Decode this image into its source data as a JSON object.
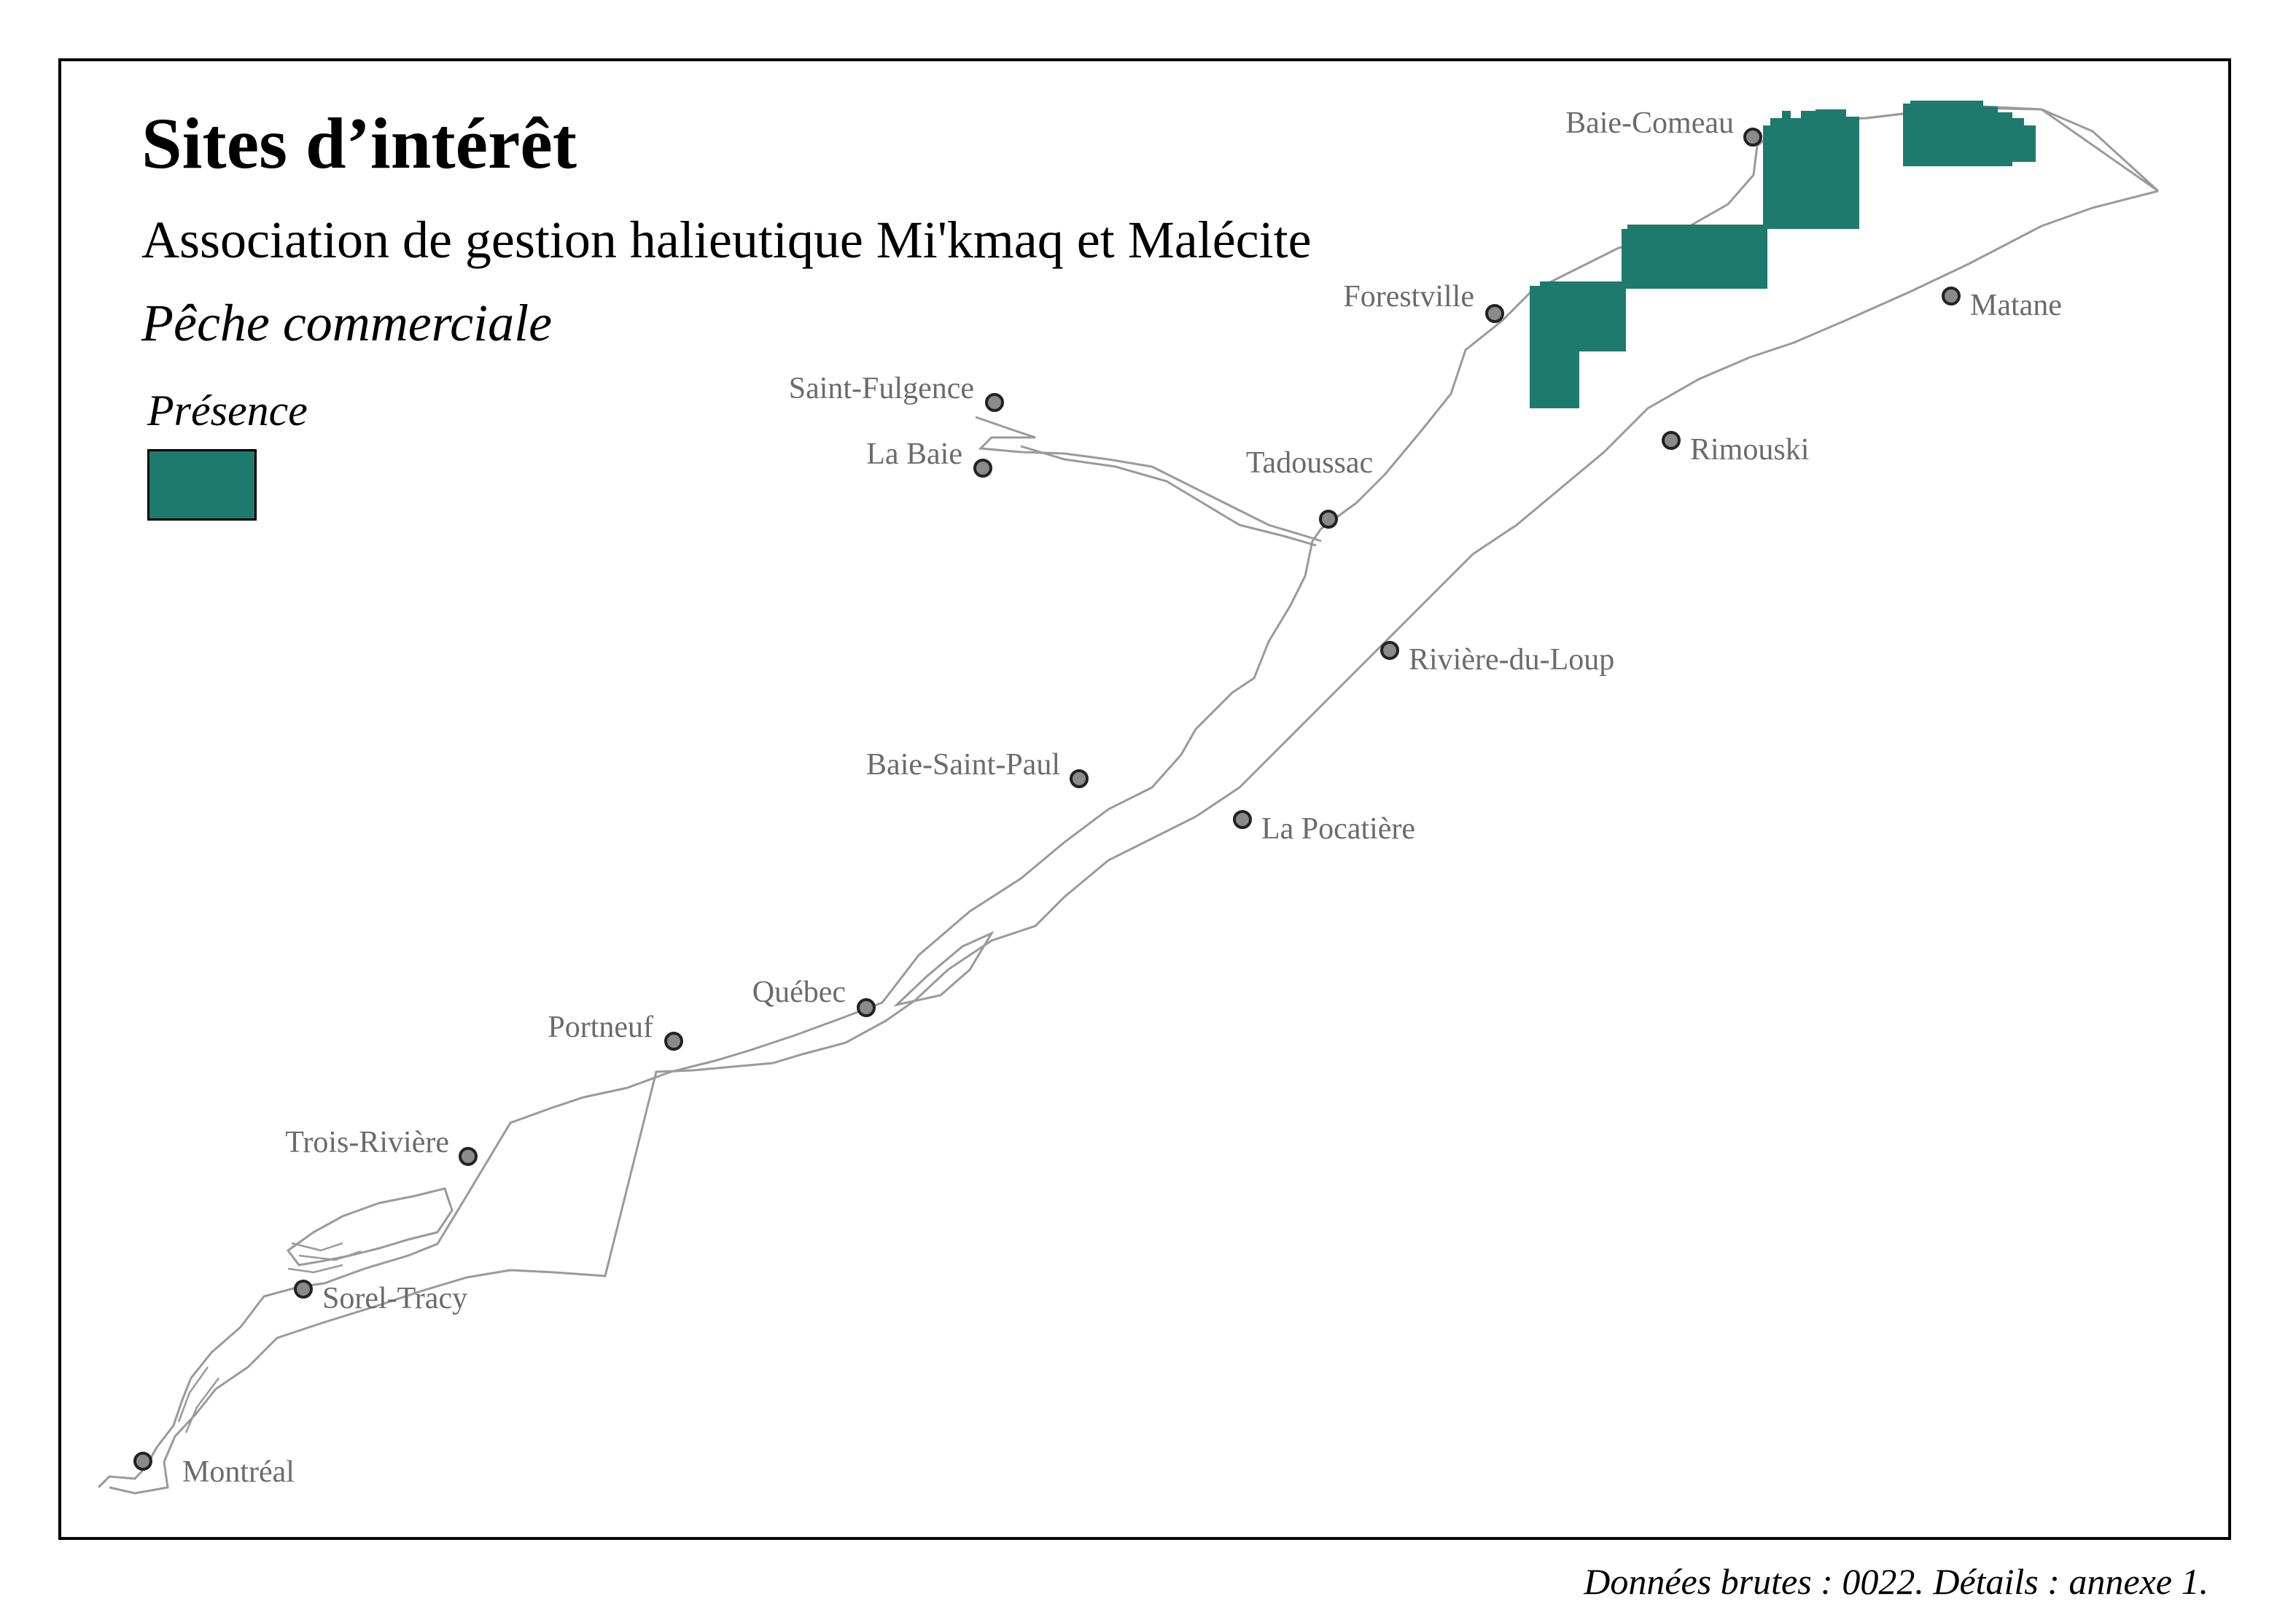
{
  "map": {
    "title": "Sites d’intérêt",
    "subtitle": "Association de gestion halieutique Mi'kmaq et Malécite",
    "theme": "Pêche commerciale",
    "source_note": "Données brutes : 0022. Détails : annexe 1."
  },
  "legend": {
    "title": "Présence",
    "color": "#1f7a6e"
  },
  "colors": {
    "presence": "#1f7a6e",
    "river_line": "#9a9a9a",
    "city_marker": "#8a8a8a",
    "city_label": "#6b6b6b"
  },
  "cities": [
    {
      "name": "Baie-Comeau"
    },
    {
      "name": "Forestville"
    },
    {
      "name": "Matane"
    },
    {
      "name": "Saint-Fulgence"
    },
    {
      "name": "La Baie"
    },
    {
      "name": "Tadoussac"
    },
    {
      "name": "Rimouski"
    },
    {
      "name": "Rivière-du-Loup"
    },
    {
      "name": "Baie-Saint-Paul"
    },
    {
      "name": "La Pocatière"
    },
    {
      "name": "Québec"
    },
    {
      "name": "Portneuf"
    },
    {
      "name": "Trois-Rivière"
    },
    {
      "name": "Sorel-Tracy"
    },
    {
      "name": "Montréal"
    }
  ]
}
